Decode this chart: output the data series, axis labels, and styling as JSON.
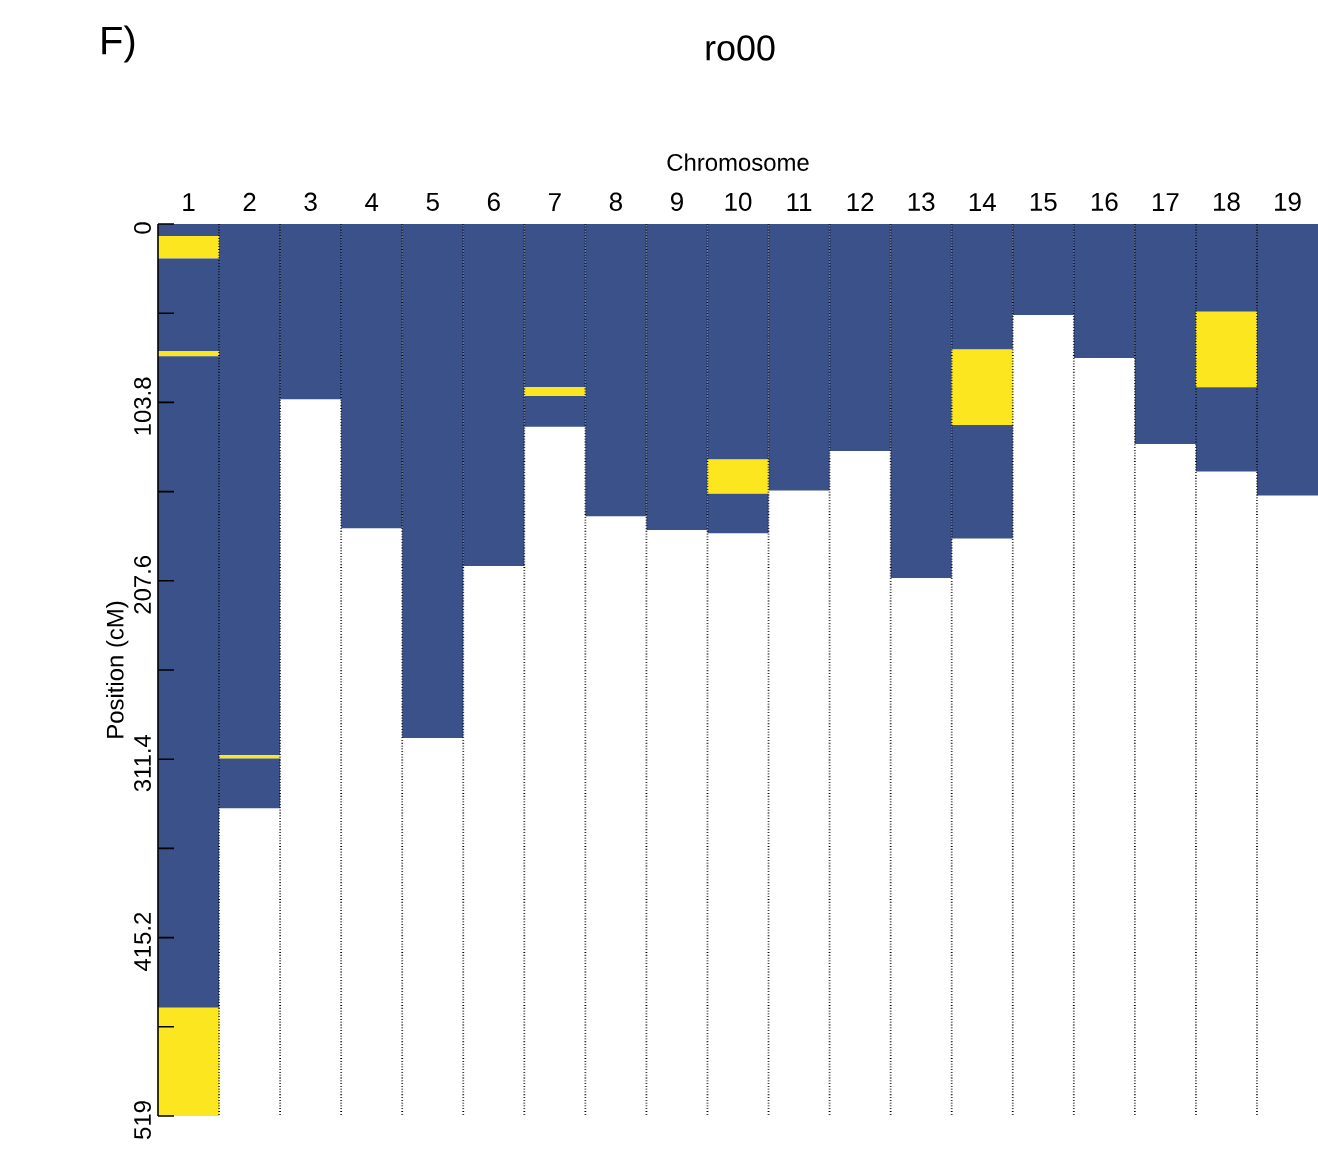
{
  "chart_data": {
    "type": "bar",
    "stacked": true,
    "title": "ro00",
    "xlabel": "Chromosome",
    "ylabel": "Position (cM)",
    "annotations": [
      "F)"
    ],
    "categories": [
      "1",
      "2",
      "3",
      "4",
      "5",
      "6",
      "7",
      "8",
      "9",
      "10",
      "11",
      "12",
      "13",
      "14",
      "15",
      "16",
      "17",
      "18",
      "19"
    ],
    "ylim": [
      519,
      0
    ],
    "yticks": [
      0,
      {
        "value": 51.9,
        "label": null
      },
      103.8,
      {
        "value": 155.7,
        "label": null
      },
      207.6,
      {
        "value": 259.5,
        "label": null
      },
      311.4,
      {
        "value": 363.3,
        "label": null
      },
      415.2,
      {
        "value": 467.1,
        "label": null
      },
      519
    ],
    "grid": "x",
    "series": [
      {
        "color": "#3b5189",
        "values": [
          7,
          309,
          102,
          177,
          299,
          199,
          95,
          170,
          178,
          137,
          155,
          132,
          206,
          73,
          53,
          78,
          128,
          51,
          158
        ]
      },
      {
        "color": "#fce61f",
        "values": [
          13,
          2,
          null,
          null,
          null,
          null,
          5,
          null,
          null,
          20,
          null,
          null,
          null,
          44,
          null,
          null,
          null,
          44,
          null
        ]
      },
      {
        "color": "#3b5189",
        "values": [
          54,
          29,
          null,
          null,
          null,
          null,
          18,
          null,
          null,
          23,
          null,
          null,
          null,
          66,
          null,
          null,
          null,
          49,
          null
        ]
      },
      {
        "color": "#fce61f",
        "values": [
          3,
          null,
          null,
          null,
          null,
          null,
          null,
          null,
          null,
          null,
          null,
          null,
          null,
          null,
          null,
          null,
          null,
          null,
          null
        ]
      },
      {
        "color": "#3b5189",
        "values": [
          379,
          null,
          null,
          null,
          null,
          null,
          null,
          null,
          null,
          null,
          null,
          null,
          null,
          null,
          null,
          null,
          null,
          null,
          null
        ]
      },
      {
        "color": "#fce61f",
        "values": [
          63,
          null,
          null,
          null,
          null,
          null,
          null,
          null,
          null,
          null,
          null,
          null,
          null,
          null,
          null,
          null,
          null,
          null,
          null
        ]
      }
    ]
  }
}
